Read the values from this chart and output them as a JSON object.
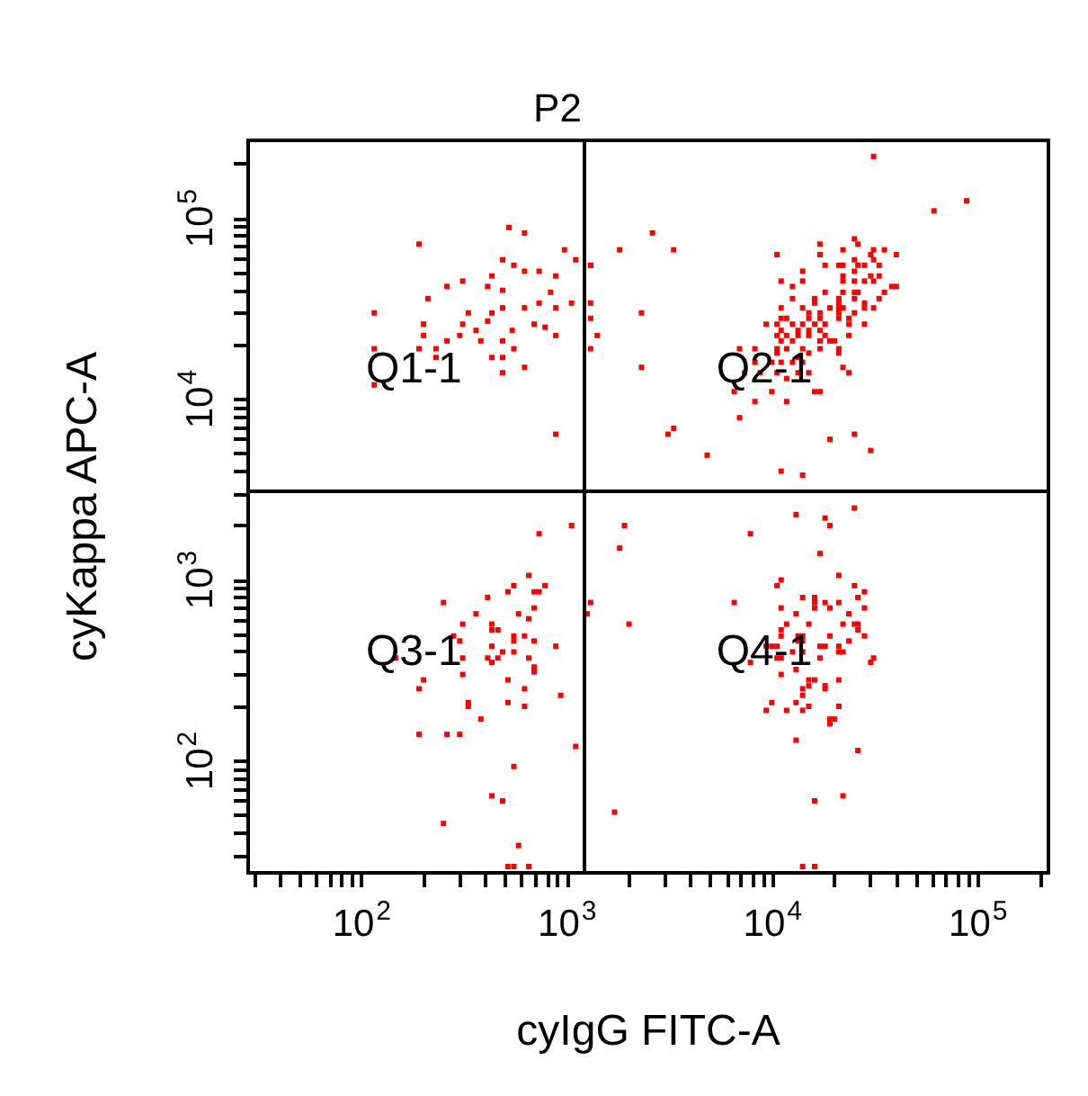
{
  "chart_data": {
    "type": "scatter",
    "title": "P2",
    "xlabel": "cyIgG FITC-A",
    "ylabel": "cyKappa APC-A",
    "log": "xy",
    "grid": false,
    "marker": "square",
    "xlim": [
      28,
      220000
    ],
    "ylim": [
      24,
      270000
    ],
    "xticks": [
      {
        "value": 30,
        "label": null
      },
      {
        "value": 40,
        "label": null
      },
      {
        "value": 50,
        "label": null
      },
      {
        "value": 60,
        "label": null
      },
      {
        "value": 70,
        "label": null
      },
      {
        "value": 80,
        "label": null
      },
      {
        "value": 90,
        "label": null
      },
      {
        "value": 100,
        "label": "10$^{2}$"
      },
      {
        "value": 200,
        "label": null
      },
      {
        "value": 300,
        "label": null
      },
      {
        "value": 400,
        "label": null
      },
      {
        "value": 500,
        "label": null
      },
      {
        "value": 600,
        "label": null
      },
      {
        "value": 700,
        "label": null
      },
      {
        "value": 800,
        "label": null
      },
      {
        "value": 900,
        "label": null
      },
      {
        "value": 1000,
        "label": "10$^{3}$"
      },
      {
        "value": 2000,
        "label": null
      },
      {
        "value": 3000,
        "label": null
      },
      {
        "value": 4000,
        "label": null
      },
      {
        "value": 5000,
        "label": null
      },
      {
        "value": 6000,
        "label": null
      },
      {
        "value": 7000,
        "label": null
      },
      {
        "value": 8000,
        "label": null
      },
      {
        "value": 9000,
        "label": null
      },
      {
        "value": 10000,
        "label": "10$^{4}$"
      },
      {
        "value": 20000,
        "label": null
      },
      {
        "value": 30000,
        "label": null
      },
      {
        "value": 40000,
        "label": null
      },
      {
        "value": 50000,
        "label": null
      },
      {
        "value": 60000,
        "label": null
      },
      {
        "value": 70000,
        "label": null
      },
      {
        "value": 80000,
        "label": null
      },
      {
        "value": 90000,
        "label": null
      },
      {
        "value": 100000,
        "label": "10$^{5}$"
      },
      {
        "value": 200000,
        "label": null
      }
    ],
    "yticks": [
      {
        "value": 30,
        "label": null
      },
      {
        "value": 40,
        "label": null
      },
      {
        "value": 50,
        "label": null
      },
      {
        "value": 60,
        "label": null
      },
      {
        "value": 70,
        "label": null
      },
      {
        "value": 80,
        "label": null
      },
      {
        "value": 90,
        "label": null
      },
      {
        "value": 100,
        "label": "10$^{2}$"
      },
      {
        "value": 200,
        "label": null
      },
      {
        "value": 300,
        "label": null
      },
      {
        "value": 400,
        "label": null
      },
      {
        "value": 500,
        "label": null
      },
      {
        "value": 600,
        "label": null
      },
      {
        "value": 700,
        "label": null
      },
      {
        "value": 800,
        "label": null
      },
      {
        "value": 900,
        "label": null
      },
      {
        "value": 1000,
        "label": "10$^{3}$"
      },
      {
        "value": 2000,
        "label": null
      },
      {
        "value": 3000,
        "label": null
      },
      {
        "value": 4000,
        "label": null
      },
      {
        "value": 5000,
        "label": null
      },
      {
        "value": 6000,
        "label": null
      },
      {
        "value": 7000,
        "label": null
      },
      {
        "value": 8000,
        "label": null
      },
      {
        "value": 9000,
        "label": null
      },
      {
        "value": 10000,
        "label": "10$^{4}$"
      },
      {
        "value": 20000,
        "label": null
      },
      {
        "value": 30000,
        "label": null
      },
      {
        "value": 40000,
        "label": null
      },
      {
        "value": 50000,
        "label": null
      },
      {
        "value": 60000,
        "label": null
      },
      {
        "value": 70000,
        "label": null
      },
      {
        "value": 80000,
        "label": null
      },
      {
        "value": 90000,
        "label": null
      },
      {
        "value": 100000,
        "label": "10$^{5}$"
      },
      {
        "value": 200000,
        "label": null
      }
    ],
    "ref_lines": [
      {
        "axis": "x",
        "value": 1200,
        "color": "#000000"
      },
      {
        "axis": "y",
        "value": 3100,
        "color": "#000000"
      }
    ],
    "annotations": [
      "Q1-1",
      "Q2-1",
      "Q3-1",
      "Q4-1"
    ],
    "series": [
      {
        "color": "#ff0000",
        "x": [
          520,
          620,
          190,
          970,
          1100,
          485,
          550,
          620,
          730,
          430,
          880,
          310,
          260,
          410,
          485,
          830,
          210,
          730,
          1050,
          485,
          620,
          880,
          115,
          330,
          430,
          410,
          200,
          310,
          690,
          780,
          540,
          360,
          200,
          300,
          880,
          260,
          380,
          485,
          115,
          190,
          230,
          550,
          430,
          230,
          485,
          620,
          485,
          115,
          880,
          31000,
          88000,
          61000,
          2600,
          1800,
          3300,
          1300,
          10500,
          17000,
          25000,
          26000,
          22000,
          31000,
          35000,
          40000,
          17000,
          30000,
          25000,
          31000,
          18000,
          21000,
          22000,
          26000,
          28000,
          33000,
          14000,
          25000,
          30000,
          33000,
          22000,
          22000,
          25000,
          28000,
          31000,
          11000,
          14000,
          12500,
          38000,
          40000,
          22000,
          25000,
          26000,
          35000,
          18000,
          12500,
          16000,
          21000,
          25000,
          33000,
          16000,
          21000,
          28000,
          11000,
          14000,
          19000,
          21000,
          22000,
          28000,
          31000,
          15000,
          17000,
          21000,
          25000,
          11000,
          11700,
          15000,
          17000,
          21000,
          23500,
          9300,
          10500,
          12500,
          14000,
          16000,
          18000,
          23500,
          28000,
          11000,
          13300,
          15000,
          17000,
          10500,
          11700,
          13300,
          15000,
          18000,
          23500,
          11000,
          12500,
          17000,
          19000,
          20000,
          8200,
          10500,
          11700,
          14000,
          17000,
          21000,
          6900,
          10500,
          13300,
          15000,
          21000,
          8200,
          9900,
          11000,
          12500,
          14000,
          7300,
          8700,
          10500,
          13300,
          15000,
          23500,
          11700,
          22000,
          6500,
          9900,
          16000,
          17000,
          8200,
          11700,
          6900,
          3300,
          3100,
          4800,
          19000,
          25000,
          30000,
          11000,
          14000,
          1300,
          1300,
          1300,
          1400,
          1300,
          2300,
          2300,
          1050,
          730,
          650,
          550,
          515,
          690,
          730,
          780,
          250,
          410,
          360,
          580,
          690,
          650,
          310,
          430,
          430,
          460,
          280,
          550,
          620,
          550,
          690,
          300,
          430,
          880,
          485,
          550,
          146,
          310,
          410,
          460,
          650,
          430,
          690,
          690,
          310,
          200,
          515,
          190,
          620,
          515,
          620,
          330,
          330,
          930,
          380,
          190,
          260,
          300,
          1100,
          550,
          430,
          485,
          250,
          580,
          515,
          550,
          650,
          13000,
          18000,
          19000,
          25000,
          1900,
          1800,
          7800,
          17000,
          21000,
          10500,
          11000,
          25000,
          28000,
          26000,
          1300,
          1250,
          6500,
          2000,
          14000,
          16000,
          16000,
          16000,
          18000,
          21000,
          19000,
          23500,
          28000,
          11000,
          13000,
          11700,
          11000,
          11000,
          15000,
          22000,
          25000,
          26000,
          26000,
          13300,
          14000,
          14000,
          13300,
          19000,
          28000,
          23500,
          9300,
          9900,
          10500,
          17000,
          18000,
          21000,
          12500,
          14000,
          21000,
          22000,
          7800,
          10500,
          11000,
          17000,
          31000,
          30000,
          13000,
          11000,
          15000,
          16000,
          21000,
          15000,
          18000,
          18000,
          14000,
          14000,
          9900,
          13000,
          21000,
          15000,
          9300,
          11700,
          14000,
          19000,
          20000,
          19000,
          13000,
          26000,
          16000,
          22000,
          1700,
          14000,
          16000
        ],
        "values": [
          89000,
          83000,
          72000,
          67000,
          59000,
          59000,
          55000,
          51000,
          51000,
          48000,
          48000,
          45000,
          42000,
          42000,
          40000,
          39000,
          36000,
          34000,
          34000,
          32000,
          32000,
          32000,
          30000,
          30000,
          30000,
          27000,
          26000,
          26000,
          26000,
          25000,
          24000,
          24000,
          22500,
          22500,
          22500,
          21000,
          21000,
          21000,
          19000,
          19000,
          19000,
          19000,
          17000,
          17000,
          17000,
          15000,
          14000,
          12000,
          6400,
          220000,
          125000,
          110000,
          83000,
          67000,
          67000,
          55000,
          63000,
          72000,
          77000,
          72000,
          67000,
          67000,
          67000,
          63000,
          63000,
          63000,
          59000,
          59000,
          55000,
          55000,
          55000,
          55000,
          55000,
          55000,
          51000,
          51000,
          48000,
          48000,
          48000,
          45000,
          45000,
          45000,
          45000,
          45000,
          45000,
          42000,
          42000,
          42000,
          39000,
          39000,
          39000,
          39000,
          39000,
          36000,
          36000,
          36000,
          36000,
          36000,
          34000,
          34000,
          34000,
          32000,
          32000,
          32000,
          32000,
          32000,
          32000,
          32000,
          30000,
          30000,
          30000,
          30000,
          28000,
          28000,
          28000,
          28000,
          28000,
          28000,
          26000,
          26000,
          26000,
          26000,
          26000,
          26000,
          26000,
          26000,
          24000,
          24000,
          24000,
          24000,
          22500,
          22500,
          22500,
          22500,
          22500,
          22500,
          21000,
          21000,
          21000,
          21000,
          21000,
          19000,
          19000,
          19000,
          19000,
          19000,
          19000,
          19000,
          18000,
          17000,
          18000,
          18000,
          16000,
          16000,
          16000,
          16000,
          16000,
          14000,
          14000,
          14000,
          14000,
          14000,
          14000,
          13000,
          15000,
          11000,
          11000,
          11000,
          11000,
          9700,
          9700,
          7900,
          6900,
          6400,
          4900,
          6000,
          6400,
          5200,
          4000,
          3800,
          55000,
          34000,
          28000,
          22500,
          19000,
          30000,
          15000,
          2000,
          1800,
          1060,
          930,
          860,
          860,
          860,
          930,
          750,
          800,
          650,
          650,
          700,
          610,
          570,
          570,
          530,
          530,
          490,
          490,
          490,
          460,
          460,
          460,
          430,
          430,
          400,
          400,
          370,
          370,
          370,
          370,
          370,
          350,
          330,
          310,
          300,
          280,
          280,
          250,
          250,
          210,
          200,
          210,
          200,
          230,
          170,
          140,
          140,
          140,
          120,
          93,
          64,
          60,
          45,
          34,
          26,
          26,
          26,
          2300,
          2200,
          2000,
          2500,
          2000,
          1500,
          1800,
          1400,
          1060,
          930,
          1000,
          930,
          860,
          800,
          750,
          650,
          750,
          570,
          800,
          800,
          750,
          700,
          750,
          750,
          700,
          650,
          700,
          700,
          650,
          570,
          530,
          490,
          570,
          570,
          570,
          570,
          530,
          490,
          490,
          460,
          460,
          490,
          490,
          460,
          430,
          430,
          430,
          430,
          430,
          430,
          400,
          400,
          400,
          400,
          350,
          370,
          370,
          370,
          370,
          350,
          320,
          300,
          280,
          280,
          280,
          260,
          260,
          250,
          250,
          230,
          210,
          210,
          200,
          200,
          190,
          190,
          190,
          170,
          170,
          160,
          130,
          114,
          60,
          64,
          52,
          26,
          26
        ]
      }
    ]
  }
}
